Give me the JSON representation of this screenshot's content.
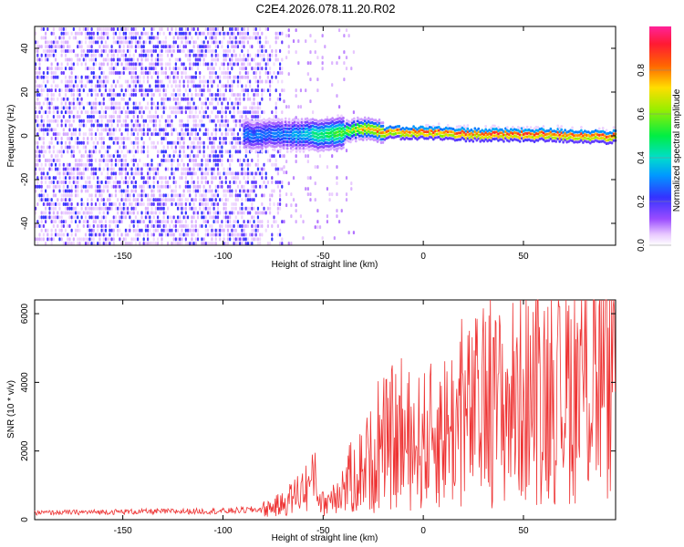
{
  "title": "C2E4.2026.078.11.20.R02",
  "chart_data": [
    {
      "type": "heatmap",
      "name": "spectrogram",
      "xlabel": "Height of straight line (km)",
      "ylabel": "Frequency (Hz)",
      "xlim": [
        -194,
        96
      ],
      "ylim": [
        -50,
        50
      ],
      "xticks": [
        -150,
        -100,
        -50,
        0,
        50
      ],
      "yticks": [
        -40,
        -20,
        0,
        20,
        40
      ],
      "colorbar": {
        "label": "Normalized spectral amplitude",
        "range": [
          0.0,
          1.0
        ],
        "ticks": [
          0.0,
          0.2,
          0.4,
          0.6,
          0.8
        ],
        "tick_labels": [
          "0.0",
          "0.2",
          "0.4",
          "0.6",
          "0.8"
        ]
      },
      "description_series": [
        {
          "name": "noise_region_amplitude",
          "x_range": [
            -194,
            -70
          ],
          "values": [
            0.05,
            0.2
          ]
        },
        {
          "name": "signal_center_frequency",
          "x": [
            -70,
            -50,
            -30,
            -20,
            0,
            30,
            60,
            96
          ],
          "y": [
            0,
            0,
            3,
            1,
            1,
            0,
            0,
            -1
          ]
        },
        {
          "name": "signal_peak_amplitude",
          "x": [
            -70,
            -50,
            -40,
            -30,
            -20,
            0,
            50,
            96
          ],
          "y": [
            0.3,
            0.5,
            0.6,
            0.8,
            0.85,
            0.9,
            0.95,
            0.9
          ]
        }
      ]
    },
    {
      "type": "line",
      "name": "snr",
      "xlabel": "Height of straight line (km)",
      "ylabel": "SNR (10 * v/v)",
      "xlim": [
        -194,
        96
      ],
      "ylim": [
        0,
        6400
      ],
      "xticks": [
        -150,
        -100,
        -50,
        0,
        50
      ],
      "yticks": [
        0,
        2000,
        4000,
        6000
      ],
      "color": "#ee3333",
      "series": [
        {
          "name": "snr envelope",
          "x": [
            -194,
            -150,
            -100,
            -80,
            -70,
            -60,
            -55,
            -50,
            -40,
            -30,
            -20,
            -15,
            -10,
            0,
            10,
            20,
            30,
            40,
            50,
            60,
            70,
            80,
            90,
            96
          ],
          "y": [
            200,
            230,
            250,
            300,
            450,
            900,
            1100,
            450,
            1000,
            1500,
            2100,
            2400,
            2100,
            2300,
            2600,
            2900,
            3300,
            3300,
            3600,
            3800,
            3900,
            3900,
            4000,
            4100
          ],
          "peaks": [
            {
              "x": -54,
              "y": 1950
            },
            {
              "x": -11,
              "y": 4700
            },
            {
              "x": 35,
              "y": 5300
            },
            {
              "x": 68,
              "y": 6200
            },
            {
              "x": 85,
              "y": 6400
            }
          ]
        }
      ]
    }
  ]
}
